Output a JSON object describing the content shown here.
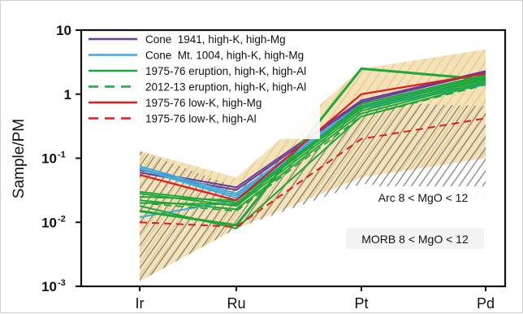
{
  "chart_data": {
    "type": "line",
    "ylabel": "Sample/PM",
    "ylog": true,
    "ylim": [
      0.001,
      10
    ],
    "categories": [
      "Ir",
      "Ru",
      "Pt",
      "Pd"
    ],
    "yticks": [
      {
        "value": 10,
        "label": "10"
      },
      {
        "value": 1,
        "label": "1"
      },
      {
        "value": 0.1,
        "label": "10",
        "exp": "-1"
      },
      {
        "value": 0.01,
        "label": "10",
        "exp": "-2"
      },
      {
        "value": 0.001,
        "label": "10",
        "exp": "-3"
      }
    ],
    "legend": {
      "placement": "top-left",
      "entries": [
        {
          "label": "Cone  1941, high-K, high-Mg",
          "color": "#6a3d9a",
          "dash": false
        },
        {
          "label": "Cone  Mt. 1004, high-K, high-Mg",
          "color": "#3fa9e0",
          "dash": false
        },
        {
          "label": "1975-76 eruption, high-K, high-Al",
          "color": "#1fa83a",
          "dash": false
        },
        {
          "label": "2012-13 eruption, high-K, high-Al",
          "color": "#1fa83a",
          "dash": true
        },
        {
          "label": "1975-76 low-K, high-Mg",
          "color": "#e31a1c",
          "dash": false
        },
        {
          "label": "1975-76 low-K, high-Al",
          "color": "#e31a1c",
          "dash": true
        }
      ]
    },
    "fields": [
      {
        "label": "Arc 8 < MgO < 12",
        "fill": "#f3e0b0",
        "upper": [
          0.13,
          0.05,
          2.5,
          5.0
        ],
        "lower": [
          0.0012,
          0.008,
          0.05,
          0.1
        ]
      },
      {
        "label": "MORB 8 < MgO < 12",
        "fill": "#8c8c8c",
        "upper": [
          0.13,
          0.035,
          0.75,
          0.65
        ],
        "lower": [
          0.0012,
          0.008,
          0.04,
          0.022
        ]
      }
    ],
    "series": [
      {
        "group": 0,
        "color": "#6a3d9a",
        "dash": false,
        "width": 2.0,
        "values": [
          0.065,
          0.035,
          0.8,
          2.3
        ]
      },
      {
        "group": 0,
        "color": "#6a3d9a",
        "dash": false,
        "width": 2.0,
        "values": [
          0.06,
          0.032,
          0.75,
          2.2
        ]
      },
      {
        "group": 1,
        "color": "#3fa9e0",
        "dash": false,
        "width": 2.0,
        "values": [
          0.075,
          0.028,
          0.7,
          1.9
        ]
      },
      {
        "group": 1,
        "color": "#3fa9e0",
        "dash": false,
        "width": 2.0,
        "values": [
          0.07,
          0.026,
          0.65,
          1.7
        ]
      },
      {
        "group": 1,
        "color": "#3fa9e0",
        "dash": false,
        "width": 2.0,
        "values": [
          0.068,
          0.024,
          0.62,
          1.5
        ]
      },
      {
        "group": 1,
        "color": "#3fa9e0",
        "dash": false,
        "width": 2.0,
        "values": [
          0.012,
          0.022,
          0.6,
          1.4
        ]
      },
      {
        "group": 2,
        "color": "#1fa83a",
        "dash": false,
        "width": 2.0,
        "values": [
          0.03,
          0.02,
          0.6,
          1.8
        ]
      },
      {
        "group": 2,
        "color": "#1fa83a",
        "dash": false,
        "width": 2.0,
        "values": [
          0.028,
          0.018,
          0.55,
          1.7
        ]
      },
      {
        "group": 2,
        "color": "#1fa83a",
        "dash": false,
        "width": 2.0,
        "values": [
          0.025,
          0.022,
          0.65,
          1.9
        ]
      },
      {
        "group": 2,
        "color": "#1fa83a",
        "dash": false,
        "width": 2.0,
        "values": [
          0.022,
          0.016,
          0.5,
          1.6
        ]
      },
      {
        "group": 2,
        "color": "#1fa83a",
        "dash": false,
        "width": 2.0,
        "values": [
          0.02,
          0.019,
          0.7,
          2.0
        ]
      },
      {
        "group": 2,
        "color": "#1fa83a",
        "dash": false,
        "width": 2.0,
        "values": [
          0.018,
          0.008,
          0.45,
          1.5
        ]
      },
      {
        "group": 2,
        "color": "#1fa83a",
        "dash": false,
        "width": 3.0,
        "values": [
          0.015,
          0.009,
          2.5,
          1.7
        ]
      },
      {
        "group": 3,
        "color": "#1fa83a",
        "dash": true,
        "width": 1.8,
        "values": [
          0.02,
          0.015,
          0.45,
          1.4
        ]
      },
      {
        "group": 4,
        "color": "#e31a1c",
        "dash": false,
        "width": 2.2,
        "values": [
          0.055,
          0.022,
          1.0,
          2.1
        ]
      },
      {
        "group": 5,
        "color": "#e31a1c",
        "dash": true,
        "width": 2.0,
        "values": [
          0.01,
          0.0085,
          0.2,
          0.42
        ]
      }
    ]
  }
}
